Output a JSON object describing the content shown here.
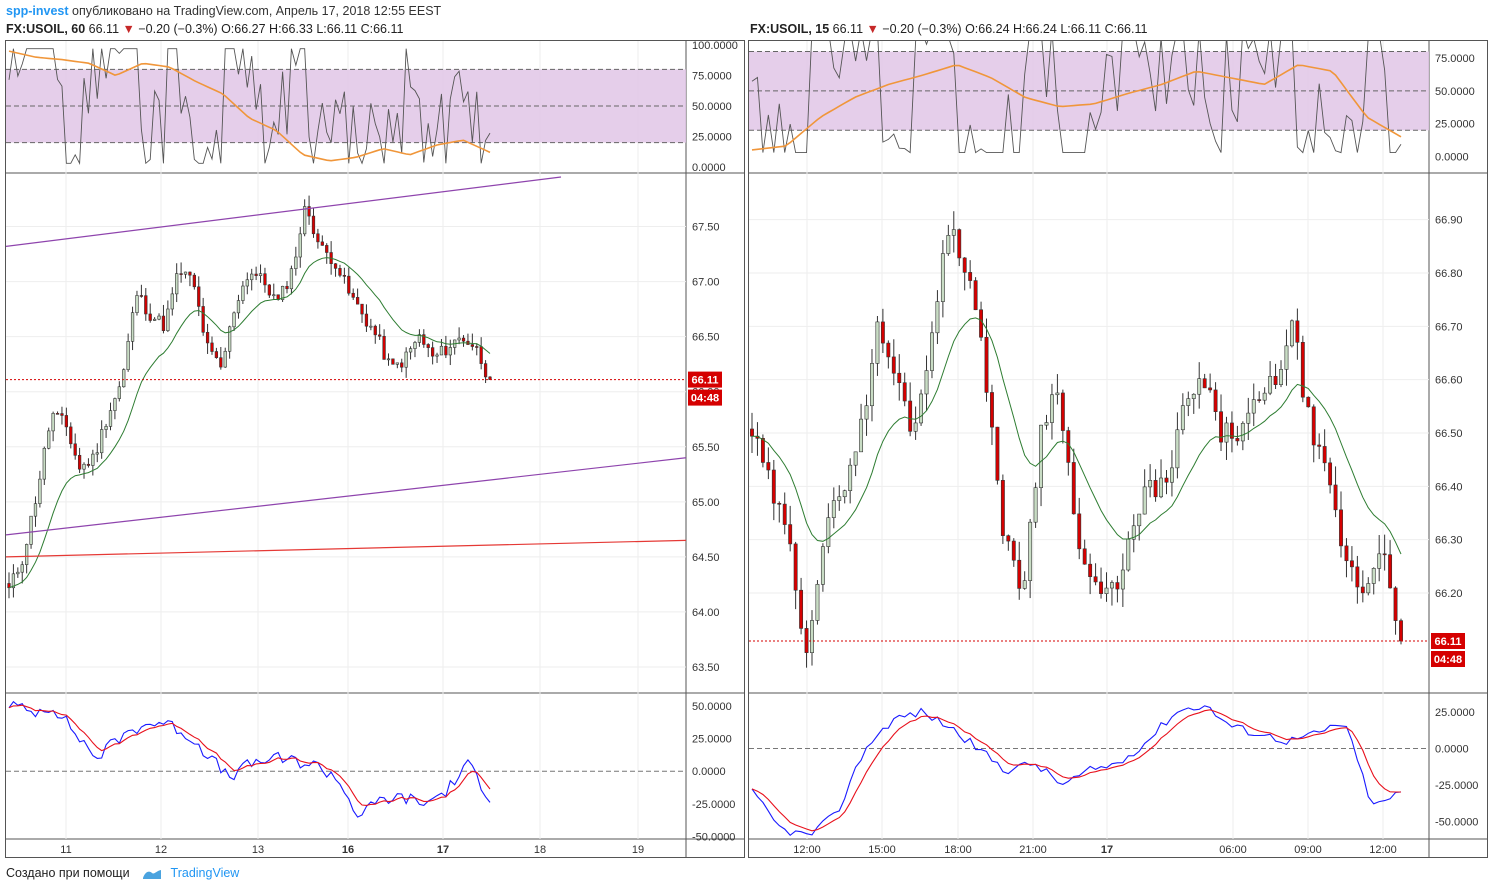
{
  "header": {
    "author": "spp-invest",
    "published": "опубликовано на TradingView.com, Апрель 17, 2018 12:55 EEST"
  },
  "colors": {
    "up": "#c8dcc4",
    "down": "#d50000",
    "ma": "#2e7d32",
    "rsiBand": "#e1c6e6",
    "rsiLine": "#555555",
    "rsiSignal": "#f0963a",
    "osc": "#1a1aff",
    "oscSignal": "#e8101c",
    "channel": "#8e44ad",
    "support": "#e53935",
    "price": "#d50000"
  },
  "charts": [
    {
      "id": "left",
      "symbol": "FX:USOIL, 60",
      "last": "66.11",
      "change": "−0.20 (−0.3%)",
      "o": "O:66.27",
      "h": "H:66.33",
      "l": "L:66.11",
      "c": "C:66.11",
      "price_label": "66.11",
      "timer_label": "04:48"
    },
    {
      "id": "right",
      "symbol": "FX:USOIL, 15",
      "last": "66.11",
      "change": "−0.20 (−0.3%)",
      "o": "O:66.24",
      "h": "H:66.24",
      "l": "L:66.11",
      "c": "C:66.11",
      "price_label": "66.11",
      "timer_label": "04:48"
    }
  ],
  "chart_data": [
    {
      "type": "candlestick",
      "title": "FX:USOIL, 60",
      "price_ticks": [
        "67.50",
        "67.00",
        "66.50",
        "66.00",
        "65.50",
        "65.00",
        "64.50",
        "64.00",
        "63.50"
      ],
      "price_range": [
        63.3,
        67.95
      ],
      "x_ticks": [
        "11",
        "12",
        "13",
        "16",
        "17",
        "18",
        "19"
      ],
      "last_price": 66.11,
      "close_path": [
        64.2,
        64.5,
        65.1,
        65.8,
        65.7,
        65.3,
        65.4,
        65.8,
        66.1,
        66.9,
        66.7,
        66.6,
        67.1,
        67.0,
        66.4,
        66.2,
        66.8,
        67.1,
        67.0,
        66.8,
        67.1,
        67.7,
        67.3,
        67.2,
        66.9,
        66.7,
        66.5,
        66.2,
        66.3,
        66.5,
        66.3,
        66.4,
        66.5,
        66.4,
        66.1
      ],
      "rsi_ticks": [
        "100.0000",
        "75.0000",
        "50.0000",
        "25.0000",
        "0.0000"
      ],
      "osc_ticks": [
        "50.0000",
        "25.0000",
        "0.0000",
        "-25.0000",
        "-50.0000"
      ],
      "osc_range": [
        -52,
        60
      ]
    },
    {
      "type": "candlestick",
      "title": "FX:USOIL, 15",
      "price_ticks": [
        "66.90",
        "66.80",
        "66.70",
        "66.60",
        "66.50",
        "66.40",
        "66.30",
        "66.20"
      ],
      "price_range": [
        66.02,
        66.98
      ],
      "x_ticks": [
        "12:00",
        "15:00",
        "18:00",
        "21:00",
        "17",
        "06:00",
        "09:00",
        "12:00"
      ],
      "last_price": 66.11,
      "close_path": [
        66.5,
        66.4,
        66.3,
        66.1,
        66.3,
        66.4,
        66.5,
        66.7,
        66.6,
        66.5,
        66.7,
        66.9,
        66.8,
        66.6,
        66.3,
        66.2,
        66.5,
        66.6,
        66.3,
        66.2,
        66.2,
        66.3,
        66.4,
        66.4,
        66.55,
        66.6,
        66.5,
        66.5,
        66.55,
        66.6,
        66.7,
        66.5,
        66.4,
        66.25,
        66.2,
        66.3,
        66.11
      ],
      "rsi_ticks": [
        "75.0000",
        "50.0000",
        "25.0000",
        "0.0000"
      ],
      "osc_ticks": [
        "25.0000",
        "0.0000",
        "-25.0000",
        "-50.0000"
      ],
      "osc_range": [
        -62,
        38
      ]
    }
  ],
  "footer": {
    "made_with": "Создано при помощи",
    "brand": "TradingView"
  }
}
